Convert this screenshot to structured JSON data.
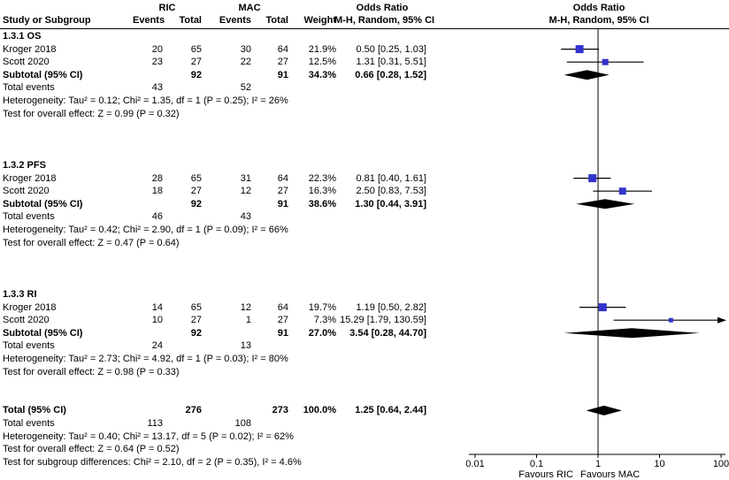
{
  "header": {
    "study": "Study or Subgroup",
    "group_ric": "RIC",
    "group_mac": "MAC",
    "events": "Events",
    "total": "Total",
    "weight": "Weight",
    "or_title": "Odds Ratio",
    "or_method": "M-H, Random, 95% CI"
  },
  "axis": {
    "tick_labels": [
      "0.01",
      "0.1",
      "1",
      "10",
      "100"
    ],
    "favours_left": "Favours RIC",
    "favours_right": "Favours MAC"
  },
  "colors": {
    "marker": "#3333cc",
    "diamond": "#000000",
    "line": "#000000",
    "text": "#000000",
    "background": "#ffffff"
  },
  "chart_data": {
    "type": "forest",
    "effect_label": "Odds Ratio",
    "method_label": "M-H, Random, 95% CI",
    "x_scale": "log",
    "x_min": 0.01,
    "x_max": 100,
    "x_ticks": [
      0.01,
      0.1,
      1,
      10,
      100
    ],
    "sections": [
      {
        "title": "1.3.1 OS",
        "studies": [
          {
            "study": "Kroger 2018",
            "ric_events": "20",
            "ric_total": "65",
            "mac_events": "30",
            "mac_total": "64",
            "weight": "21.9%",
            "weight_pct": 21.9,
            "estimate": "0.50 [0.25, 1.03]",
            "or": 0.5,
            "ci_low": 0.25,
            "ci_high": 1.03
          },
          {
            "study": "Scott 2020",
            "ric_events": "23",
            "ric_total": "27",
            "mac_events": "22",
            "mac_total": "27",
            "weight": "12.5%",
            "weight_pct": 12.5,
            "estimate": "1.31 [0.31, 5.51]",
            "or": 1.31,
            "ci_low": 0.31,
            "ci_high": 5.51
          }
        ],
        "subtotal": {
          "label": "Subtotal (95% CI)",
          "ric_total": "92",
          "mac_total": "91",
          "weight": "34.3%",
          "estimate": "0.66 [0.28, 1.52]",
          "or": 0.66,
          "ci_low": 0.28,
          "ci_high": 1.52
        },
        "total_events_label": "Total events",
        "total_events_ric": "43",
        "total_events_mac": "52",
        "heterogeneity": "Heterogeneity: Tau² = 0.12; Chi² = 1.35, df = 1 (P = 0.25); I² = 26%",
        "overall_effect": "Test for overall effect: Z = 0.99 (P = 0.32)"
      },
      {
        "title": "1.3.2 PFS",
        "studies": [
          {
            "study": "Kroger 2018",
            "ric_events": "28",
            "ric_total": "65",
            "mac_events": "31",
            "mac_total": "64",
            "weight": "22.3%",
            "weight_pct": 22.3,
            "estimate": "0.81 [0.40, 1.61]",
            "or": 0.81,
            "ci_low": 0.4,
            "ci_high": 1.61
          },
          {
            "study": "Scott 2020",
            "ric_events": "18",
            "ric_total": "27",
            "mac_events": "12",
            "mac_total": "27",
            "weight": "16.3%",
            "weight_pct": 16.3,
            "estimate": "2.50 [0.83, 7.53]",
            "or": 2.5,
            "ci_low": 0.83,
            "ci_high": 7.53
          }
        ],
        "subtotal": {
          "label": "Subtotal (95% CI)",
          "ric_total": "92",
          "mac_total": "91",
          "weight": "38.6%",
          "estimate": "1.30 [0.44, 3.91]",
          "or": 1.3,
          "ci_low": 0.44,
          "ci_high": 3.91
        },
        "total_events_label": "Total events",
        "total_events_ric": "46",
        "total_events_mac": "43",
        "heterogeneity": "Heterogeneity: Tau² = 0.42; Chi² = 2.90, df = 1 (P = 0.09); I² = 66%",
        "overall_effect": "Test for overall effect: Z = 0.47 (P = 0.64)"
      },
      {
        "title": "1.3.3 RI",
        "studies": [
          {
            "study": "Kroger 2018",
            "ric_events": "14",
            "ric_total": "65",
            "mac_events": "12",
            "mac_total": "64",
            "weight": "19.7%",
            "weight_pct": 19.7,
            "estimate": "1.19 [0.50, 2.82]",
            "or": 1.19,
            "ci_low": 0.5,
            "ci_high": 2.82
          },
          {
            "study": "Scott 2020",
            "ric_events": "10",
            "ric_total": "27",
            "mac_events": "1",
            "mac_total": "27",
            "weight": "7.3%",
            "weight_pct": 7.3,
            "estimate": "15.29 [1.79, 130.59]",
            "or": 15.29,
            "ci_low": 1.79,
            "ci_high": 130.59
          }
        ],
        "subtotal": {
          "label": "Subtotal (95% CI)",
          "ric_total": "92",
          "mac_total": "91",
          "weight": "27.0%",
          "estimate": "3.54 [0.28, 44.70]",
          "or": 3.54,
          "ci_low": 0.28,
          "ci_high": 44.7
        },
        "total_events_label": "Total events",
        "total_events_ric": "24",
        "total_events_mac": "13",
        "heterogeneity": "Heterogeneity: Tau² = 2.73; Chi² = 4.92, df = 1 (P = 0.03); I² = 80%",
        "overall_effect": "Test for overall effect: Z = 0.98 (P = 0.33)"
      }
    ],
    "total": {
      "label": "Total (95% CI)",
      "ric_total": "276",
      "mac_total": "273",
      "weight": "100.0%",
      "estimate": "1.25 [0.64, 2.44]",
      "or": 1.25,
      "ci_low": 0.64,
      "ci_high": 2.44,
      "total_events_label": "Total events",
      "total_events_ric": "113",
      "total_events_mac": "108",
      "heterogeneity": "Heterogeneity: Tau² = 0.40; Chi² = 13.17, df = 5 (P = 0.02); I² = 62%",
      "overall_effect": "Test for overall effect: Z = 0.64 (P = 0.52)",
      "subgroup_difference": "Test for subgroup differences: Chi² = 2.10, df = 2 (P = 0.35), I² = 4.6%"
    }
  }
}
